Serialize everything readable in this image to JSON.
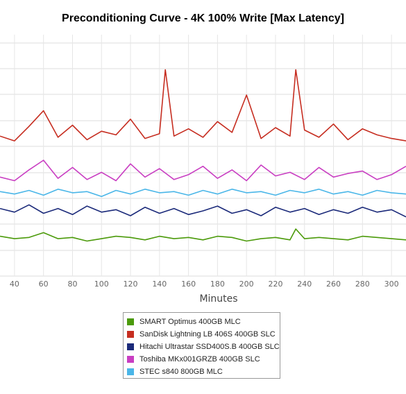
{
  "chart_data": {
    "type": "line",
    "title": "Preconditioning Curve - 4K 100% Write [Max Latency]",
    "xlabel": "Minutes",
    "ylabel": "",
    "xlim": [
      30,
      310
    ],
    "ylim": [
      0,
      20
    ],
    "x_ticks": [
      40,
      60,
      80,
      100,
      120,
      140,
      160,
      180,
      200,
      220,
      240,
      260,
      280,
      300
    ],
    "grid": true,
    "legend_position": "bottom",
    "series": [
      {
        "name": "SMART Optimus 400GB MLC",
        "color": "#4b9a0a",
        "x": [
          30,
          40,
          50,
          60,
          70,
          80,
          90,
          100,
          110,
          120,
          130,
          140,
          150,
          160,
          170,
          180,
          190,
          200,
          210,
          220,
          230,
          234,
          240,
          250,
          260,
          270,
          280,
          290,
          300,
          310
        ],
        "values": [
          3.3,
          3.1,
          3.2,
          3.6,
          3.1,
          3.2,
          2.9,
          3.1,
          3.3,
          3.2,
          3.0,
          3.3,
          3.1,
          3.2,
          3.0,
          3.3,
          3.2,
          2.9,
          3.1,
          3.2,
          3.0,
          3.9,
          3.1,
          3.2,
          3.1,
          3.0,
          3.3,
          3.2,
          3.1,
          3.0
        ]
      },
      {
        "name": "SanDisk Lightning LB 406S 400GB SLC",
        "color": "#c62d20",
        "x": [
          30,
          40,
          50,
          60,
          70,
          80,
          90,
          100,
          110,
          120,
          130,
          140,
          144,
          150,
          160,
          170,
          180,
          190,
          200,
          210,
          220,
          230,
          234,
          240,
          250,
          260,
          270,
          280,
          290,
          300,
          310
        ],
        "values": [
          11.6,
          11.2,
          12.4,
          13.7,
          11.5,
          12.5,
          11.3,
          12.0,
          11.7,
          13.0,
          11.4,
          11.8,
          17.1,
          11.6,
          12.2,
          11.5,
          12.8,
          11.9,
          15.0,
          11.4,
          12.3,
          11.6,
          17.1,
          12.1,
          11.5,
          12.6,
          11.3,
          12.2,
          11.7,
          11.4,
          11.2
        ]
      },
      {
        "name": "Hitachi Ultrastar SSD400S.B 400GB SLC",
        "color": "#1b2a7a",
        "x": [
          30,
          40,
          50,
          60,
          70,
          80,
          90,
          100,
          110,
          120,
          130,
          140,
          150,
          160,
          170,
          180,
          190,
          200,
          210,
          220,
          230,
          240,
          250,
          260,
          270,
          280,
          290,
          300,
          310
        ],
        "values": [
          5.6,
          5.3,
          5.9,
          5.2,
          5.6,
          5.1,
          5.8,
          5.3,
          5.5,
          5.0,
          5.7,
          5.2,
          5.6,
          5.1,
          5.4,
          5.8,
          5.2,
          5.5,
          5.0,
          5.7,
          5.3,
          5.6,
          5.1,
          5.5,
          5.2,
          5.7,
          5.3,
          5.5,
          4.9
        ]
      },
      {
        "name": "Toshiba MKx001GRZB 400GB SLC",
        "color": "#c93ec2",
        "x": [
          30,
          40,
          50,
          60,
          70,
          80,
          90,
          100,
          110,
          120,
          130,
          140,
          150,
          160,
          170,
          180,
          190,
          200,
          210,
          220,
          230,
          240,
          250,
          260,
          270,
          280,
          290,
          300,
          310
        ],
        "values": [
          8.2,
          7.9,
          8.8,
          9.6,
          8.1,
          9.0,
          8.0,
          8.6,
          7.9,
          9.3,
          8.2,
          8.9,
          8.0,
          8.4,
          9.1,
          8.1,
          8.8,
          7.9,
          9.2,
          8.3,
          8.6,
          8.0,
          9.0,
          8.2,
          8.5,
          8.7,
          8.0,
          8.4,
          9.1
        ]
      },
      {
        "name": "STEC s840 800GB MLC",
        "color": "#4ab6e8",
        "x": [
          30,
          40,
          50,
          60,
          70,
          80,
          90,
          100,
          110,
          120,
          130,
          140,
          150,
          160,
          170,
          180,
          190,
          200,
          210,
          220,
          230,
          240,
          250,
          260,
          270,
          280,
          290,
          300,
          310
        ],
        "values": [
          7.0,
          6.8,
          7.1,
          6.7,
          7.2,
          6.9,
          7.0,
          6.6,
          7.1,
          6.8,
          7.2,
          6.9,
          7.0,
          6.7,
          7.1,
          6.8,
          7.2,
          6.9,
          7.0,
          6.7,
          7.1,
          6.9,
          7.2,
          6.8,
          7.0,
          6.7,
          7.1,
          6.9,
          6.8
        ]
      }
    ]
  }
}
